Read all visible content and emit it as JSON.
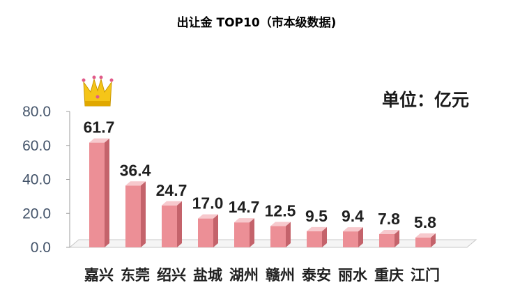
{
  "chart_data": {
    "type": "bar",
    "title": "出让金 TOP10（市本级数据)",
    "unit_label": "单位：亿元",
    "categories": [
      "嘉兴",
      "东莞",
      "绍兴",
      "盐城",
      "湖州",
      "赣州",
      "泰安",
      "丽水",
      "重庆",
      "江门"
    ],
    "values": [
      61.7,
      36.4,
      24.7,
      17.0,
      14.7,
      12.5,
      9.5,
      9.4,
      7.8,
      5.8
    ],
    "data_labels": [
      "61.7",
      "36.4",
      "24.7",
      "17.0",
      "14.7",
      "12.5",
      "9.5",
      "9.4",
      "7.8",
      "5.8"
    ],
    "yticks": [
      "0.0",
      "20.0",
      "40.0",
      "60.0",
      "80.0"
    ],
    "ylim": [
      0,
      80
    ],
    "grid": false,
    "legend": "none",
    "bar_color": "#ec8f96",
    "bar_side_color": "#c4636b",
    "bar_top_color": "#f7c9cd",
    "highlight_icon": "crown-icon"
  }
}
